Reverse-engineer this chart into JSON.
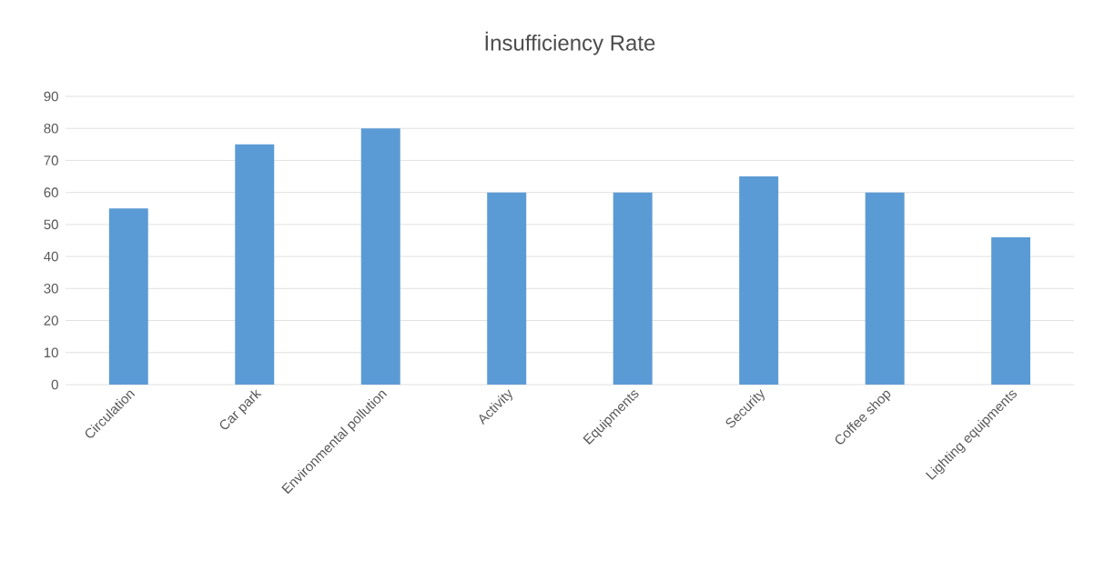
{
  "chart_data": {
    "type": "bar",
    "title": "İnsufficiency Rate",
    "categories": [
      "Circulation",
      "Car park",
      "Environmental pollution",
      "Activity",
      "Equipments",
      "Security",
      "Coffee shop",
      "Lighting equipments"
    ],
    "values": [
      55,
      75,
      80,
      60,
      60,
      65,
      60,
      46
    ],
    "color": "#5b9bd5",
    "ylim": [
      0,
      90
    ],
    "yticks": [
      0,
      10,
      20,
      30,
      40,
      50,
      60,
      70,
      80,
      90
    ],
    "grid": "y"
  }
}
